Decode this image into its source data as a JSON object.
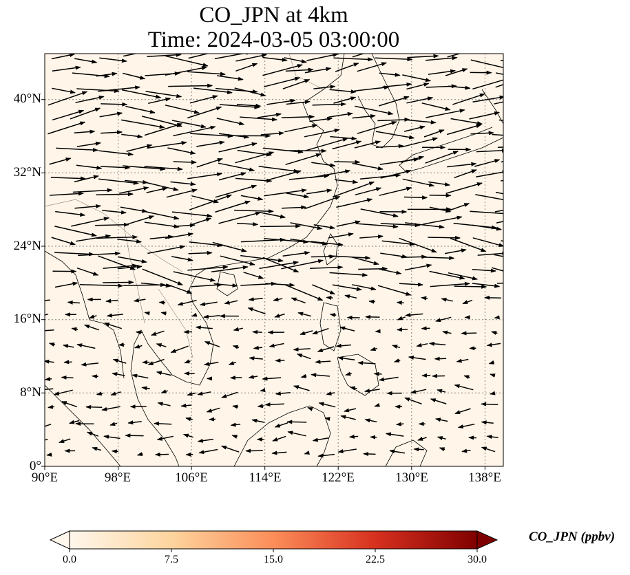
{
  "title": {
    "line1": "CO_JPN at 4km",
    "line2": "Time: 2024-03-05 03:00:00"
  },
  "map": {
    "extent": {
      "lon": [
        90,
        140
      ],
      "lat": [
        0,
        45
      ]
    },
    "lat_ticks": [
      {
        "value": 40,
        "label": "40°N"
      },
      {
        "value": 32,
        "label": "32°N"
      },
      {
        "value": 24,
        "label": "24°N"
      },
      {
        "value": 16,
        "label": "16°N"
      },
      {
        "value": 8,
        "label": "8°N"
      },
      {
        "value": 0,
        "label": "0°"
      }
    ],
    "lon_ticks": [
      {
        "value": 90,
        "label": "90°E"
      },
      {
        "value": 98,
        "label": "98°E"
      },
      {
        "value": 106,
        "label": "106°E"
      },
      {
        "value": 114,
        "label": "114°E"
      },
      {
        "value": 122,
        "label": "122°E"
      },
      {
        "value": 130,
        "label": "130°E"
      },
      {
        "value": 138,
        "label": "138°E"
      }
    ],
    "gridlines": true,
    "background_color": "#fff5e8",
    "wind_vectors": "black arrows, westerly flow north of ~20°N, weak easterly flow in the south"
  },
  "colorbar": {
    "label": "CO_JPN (ppbv)",
    "ticks": [
      "0.0",
      "7.5",
      "15.0",
      "22.5",
      "30.0"
    ],
    "range": [
      0,
      30
    ],
    "colormap": [
      "#fff7ec",
      "#fdd49e",
      "#fc8d59",
      "#d7301f",
      "#7f0000"
    ],
    "extend": "both"
  }
}
